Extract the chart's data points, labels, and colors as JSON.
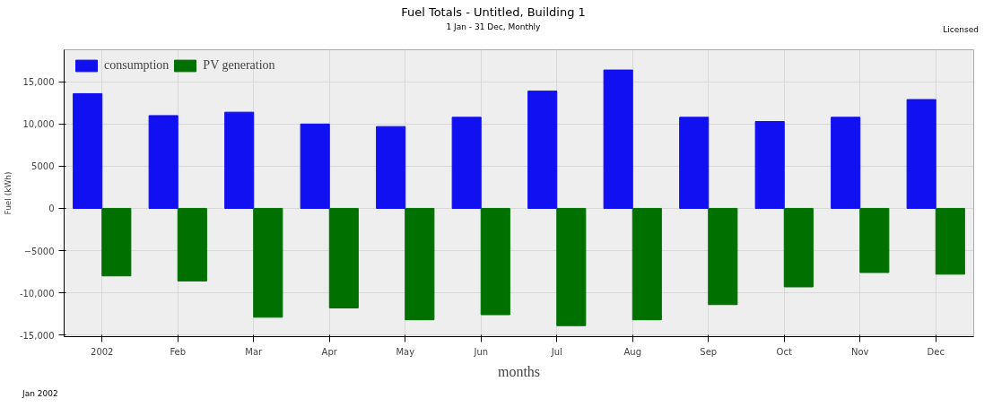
{
  "chart_data": {
    "type": "bar",
    "title": "Fuel Totals - Untitled, Building 1",
    "subtitle": "1 Jan - 31 Dec, Monthly",
    "xlabel": "months",
    "ylabel": "Fuel (kWh)",
    "annotations": [
      "Licensed",
      "Jan 2002"
    ],
    "categories": [
      "2002",
      "Feb",
      "Mar",
      "Apr",
      "May",
      "Jun",
      "Jul",
      "Aug",
      "Sep",
      "Oct",
      "Nov",
      "Dec"
    ],
    "series": [
      {
        "name": "consumption",
        "color": "#1010f0",
        "values": [
          13600,
          11000,
          11400,
          10000,
          9700,
          10800,
          13900,
          16400,
          10800,
          10300,
          10800,
          12900
        ]
      },
      {
        "name": "PV generation",
        "color": "#007000",
        "values": [
          -8000,
          -8600,
          -12900,
          -11800,
          -13200,
          -12600,
          -13900,
          -13200,
          -11400,
          -9300,
          -7600,
          -7800
        ]
      }
    ],
    "ylim": [
      -15200,
      18800
    ],
    "yticks": [
      {
        "value": -15000,
        "label": "-15,000"
      },
      {
        "value": -10000,
        "label": "-10,000"
      },
      -5000,
      0,
      5000,
      {
        "value": 10000,
        "label": "10,000"
      },
      {
        "value": 15000,
        "label": "15,000"
      }
    ],
    "grid": true,
    "legend": "top left"
  }
}
